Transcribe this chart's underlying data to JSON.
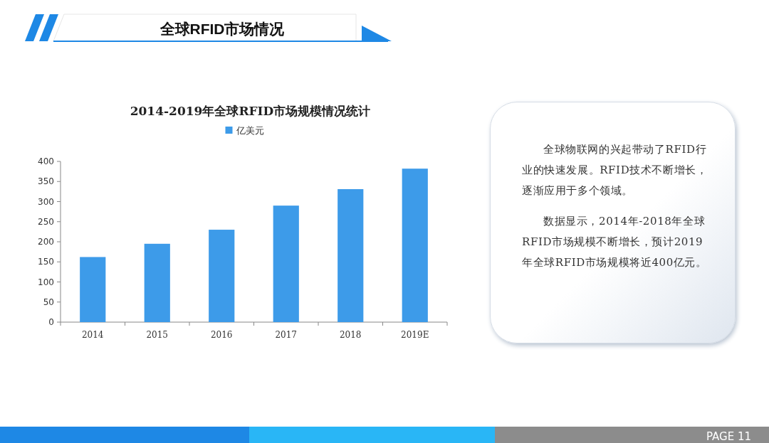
{
  "chart_data": [
    {
      "type": "bar",
      "title": "2014-2019年全球RFID市场规模情况统计",
      "categories": [
        "2014",
        "2015",
        "2016",
        "2017",
        "2018",
        "2019E"
      ],
      "series": [
        {
          "name": "亿美元",
          "color": "#3d9be9",
          "values": [
            162,
            195,
            230,
            290,
            331,
            382
          ]
        }
      ],
      "ylim": [
        0,
        400
      ],
      "yticks": [
        0,
        50,
        100,
        150,
        200,
        250,
        300,
        350,
        400
      ],
      "grid": false,
      "legend": "top",
      "annotations": [
        "全球RFID市场情况",
        "PAGE 11"
      ]
    },
    {
      "type": "other",
      "annotations": [
        "全球物联网的兴起带动了RFID行业的快速发展。RFID技术不断增长，逐渐应用于多个领域。",
        "数据显示，2014年-2018年全球RFID市场规模不断增长，预计2019年全球RFID市场规模将近400亿元。"
      ]
    }
  ]
}
